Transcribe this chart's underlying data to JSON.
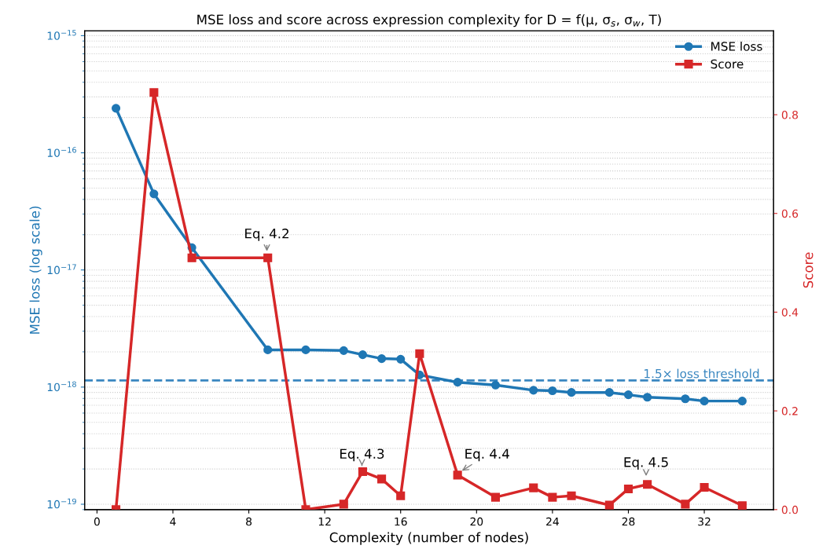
{
  "chart_data": {
    "type": "line",
    "title": "MSE loss and score across expression complexity for D = f(μ, σ$_{s}$, σ$_{w}$, T)",
    "xlabel": "Complexity (number of nodes)",
    "ylabel": "MSE loss (log scale)",
    "y2label": "Score",
    "x": [
      1,
      3,
      5,
      9,
      11,
      13,
      14,
      15,
      16,
      17,
      19,
      21,
      23,
      24,
      25,
      27,
      28,
      29,
      31,
      32,
      34
    ],
    "series": [
      {
        "name": "MSE loss",
        "color": "#1f77b4",
        "marker": "circle",
        "values": [
          2.4e-16,
          4.46e-17,
          1.55e-17,
          2.08e-18,
          2.08e-18,
          2.05e-18,
          1.89e-18,
          1.75e-18,
          1.73e-18,
          1.27e-18,
          1.1e-18,
          1.04e-18,
          9.4e-19,
          9.3e-19,
          9e-19,
          9e-19,
          8.6e-19,
          8.2e-19,
          7.95e-19,
          7.6e-19,
          7.6e-19
        ]
      },
      {
        "name": "Score",
        "color": "#d62728",
        "marker": "square",
        "axis": "y2",
        "values": [
          0.0,
          0.845,
          0.51,
          0.51,
          0.0,
          0.011,
          0.077,
          0.062,
          0.028,
          0.316,
          0.07,
          0.025,
          0.044,
          0.025,
          0.028,
          0.009,
          0.042,
          0.051,
          0.011,
          0.045,
          0.008
        ]
      }
    ],
    "log": "y",
    "xlim": [
      -0.65,
      35.65
    ],
    "xticks": [
      0,
      4,
      8,
      12,
      16,
      20,
      24,
      28,
      32
    ],
    "ylim": [
      9e-20,
      1.1e-15
    ],
    "yticks": [
      {
        "value": 1e-19,
        "label": "10$^{−19}$"
      },
      {
        "value": 1e-18,
        "label": "10$^{−18}$"
      },
      {
        "value": 1e-17,
        "label": "10$^{−17}$"
      },
      {
        "value": 1e-16,
        "label": "10$^{−16}$"
      },
      {
        "value": 1e-15,
        "label": "10$^{−15}$"
      }
    ],
    "y2lim": [
      0,
      0.97
    ],
    "y2ticks": [
      {
        "value": 0,
        "label": "0.0"
      },
      {
        "value": 0.2,
        "label": "0.2"
      },
      {
        "value": 0.4,
        "label": "0.4"
      },
      {
        "value": 0.6,
        "label": "0.6"
      },
      {
        "value": 0.8,
        "label": "0.8"
      }
    ],
    "ref_lines": [
      {
        "axis": "y",
        "value": 1.14e-18,
        "label": "1.5× loss threshold",
        "color": "#3a87c0",
        "line_style": "dashed"
      }
    ],
    "annotations": [
      "Eq. 4.2",
      "Eq. 4.3",
      "Eq. 4.4",
      "Eq. 4.5"
    ],
    "grid": "y",
    "legend": "top right",
    "line_style": "solid"
  }
}
